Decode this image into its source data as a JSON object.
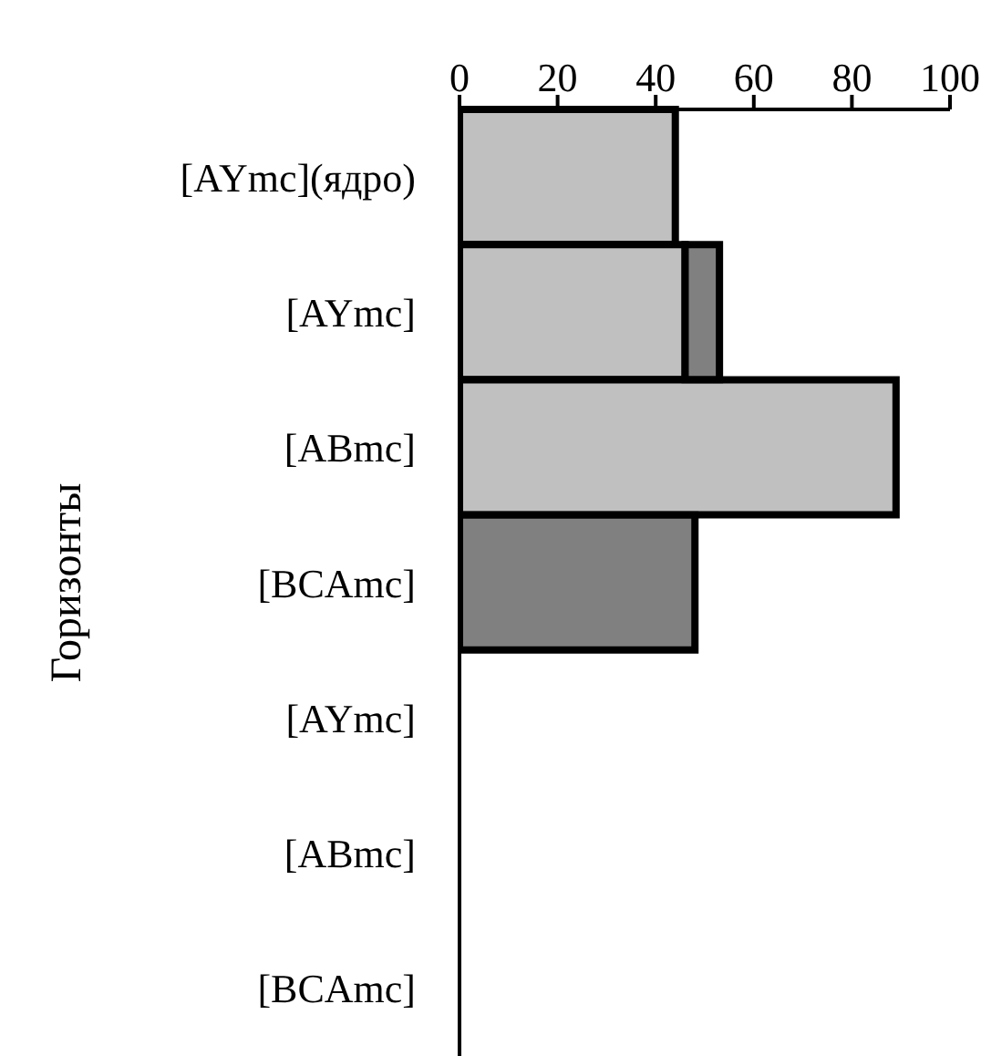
{
  "chart_data": {
    "type": "bar",
    "orientation": "horizontal",
    "stacked": true,
    "ylabel": "Горизонты",
    "categories": [
      "[AYmc](ядро)",
      "[AYmc]",
      "[ABmc]",
      "[BCAmc]",
      "[AYmc]",
      "[ABmc]",
      "[BCAmc]"
    ],
    "series": [
      {
        "color": "#c0c0c0",
        "values": [
          44,
          46,
          89,
          null,
          null,
          null,
          null
        ]
      },
      {
        "color": "#808080",
        "values": [
          null,
          7,
          null,
          48,
          null,
          null,
          null
        ]
      }
    ],
    "xlim": [
      0,
      100
    ],
    "xticks": [
      0,
      20,
      40,
      60,
      80,
      100
    ],
    "grid": false,
    "legend": false
  }
}
